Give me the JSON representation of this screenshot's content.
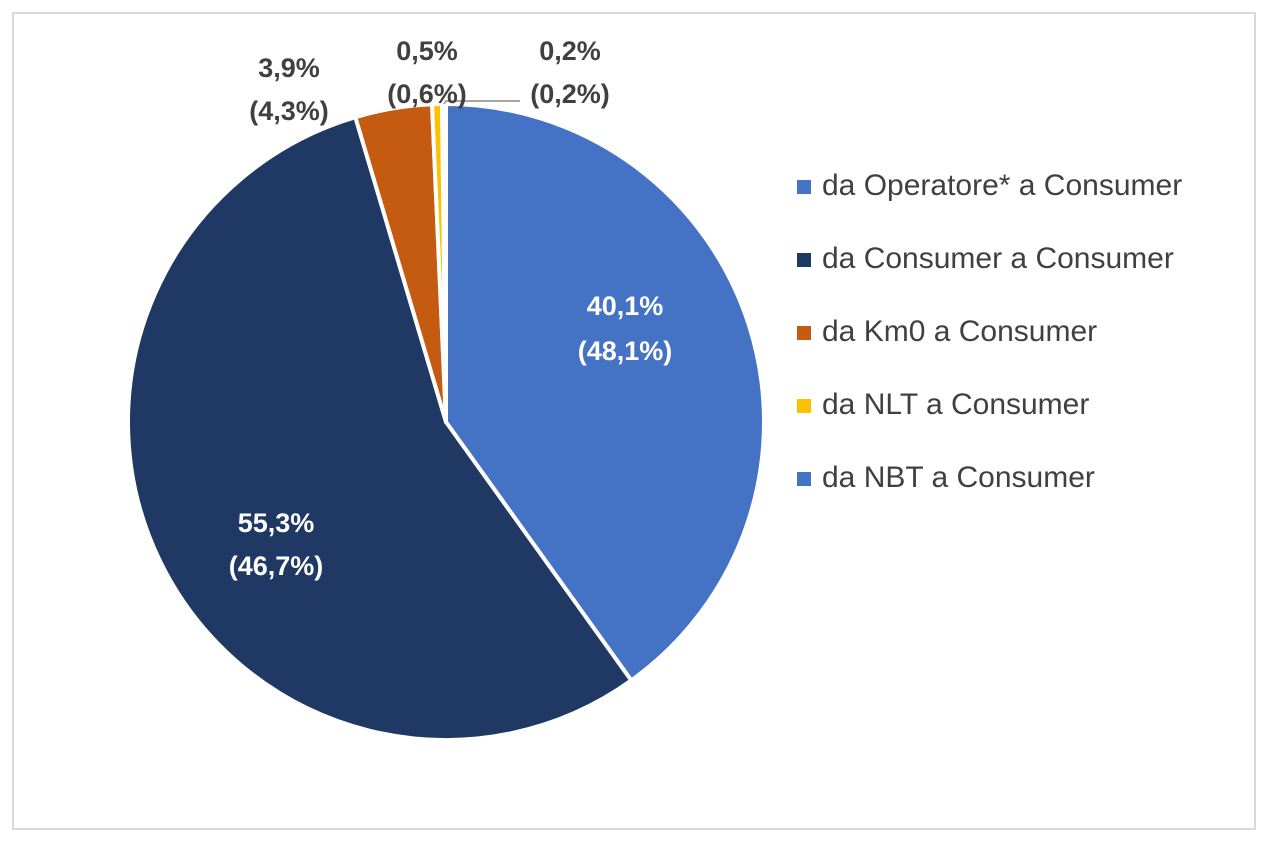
{
  "chart_data": {
    "type": "pie",
    "title": "",
    "legend_position": "right",
    "start_angle_deg": 0,
    "slices": [
      {
        "name": "da Operatore* a Consumer",
        "value": 40.1,
        "label_line1": "40,1%",
        "label_line2": "(48,1%)",
        "color": "#4472C4",
        "label_color": "#ffffff",
        "label_placement": "inside"
      },
      {
        "name": "da Consumer a Consumer",
        "value": 55.3,
        "label_line1": "55,3%",
        "label_line2": "(46,7%)",
        "color": "#203864",
        "label_color": "#ffffff",
        "label_placement": "inside"
      },
      {
        "name": "da Km0 a Consumer",
        "value": 3.9,
        "label_line1": "3,9%",
        "label_line2": "(4,3%)",
        "color": "#C55A11",
        "label_color": "#404040",
        "label_placement": "outside"
      },
      {
        "name": "da NLT a Consumer",
        "value": 0.5,
        "label_line1": "0,5%",
        "label_line2": "(0,6%)",
        "color": "#FFC000",
        "label_color": "#404040",
        "label_placement": "outside"
      },
      {
        "name": "da NBT a Consumer",
        "value": 0.2,
        "label_line1": "0,2%",
        "label_line2": "(0,2%)",
        "color": "#4472C4",
        "label_color": "#404040",
        "label_placement": "outside-leader"
      }
    ]
  }
}
